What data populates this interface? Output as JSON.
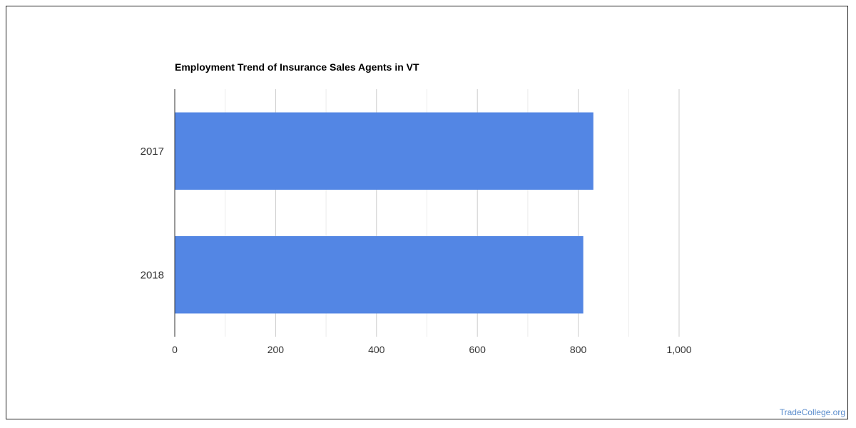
{
  "chart_data": {
    "type": "bar",
    "orientation": "horizontal",
    "title": "Employment Trend of Insurance Sales Agents in VT",
    "categories": [
      "2017",
      "2018"
    ],
    "values": [
      830,
      810
    ],
    "xlim": [
      0,
      1000
    ],
    "xticks": [
      0,
      200,
      400,
      600,
      800,
      1000
    ],
    "xtick_labels": [
      "0",
      "200",
      "400",
      "600",
      "800",
      "1,000"
    ],
    "grid": true,
    "legend": "none",
    "bar_color": "#5386e4"
  },
  "watermark": "TradeCollege.org"
}
